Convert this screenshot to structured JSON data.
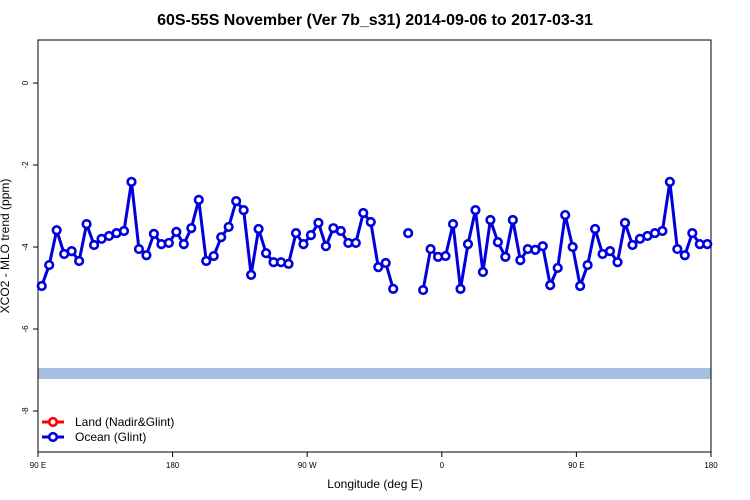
{
  "chart_data": {
    "type": "line",
    "title": "60S-55S November (Ver 7b_s31)   2014-09-06 to 2017-03-31",
    "xlabel": "Longitude (deg E)",
    "ylabel": "XCO2 - MLO trend (ppm)",
    "xlim": [
      90,
      540
    ],
    "xticks": [
      {
        "value": 90,
        "label": "90 E"
      },
      {
        "value": 180,
        "label": "180"
      },
      {
        "value": 270,
        "label": "90 W"
      },
      {
        "value": 360,
        "label": "0"
      },
      {
        "value": 450,
        "label": "90 E"
      },
      {
        "value": 540,
        "label": "180"
      }
    ],
    "ylim": [
      -9,
      1.05
    ],
    "yticks": [
      0,
      -2,
      -4,
      -6,
      -8
    ],
    "band": {
      "ymin": -7.22,
      "ymax": -6.95,
      "color": "#a6bee0"
    },
    "legend": "bottom-left",
    "x": [
      92.5,
      97.5,
      102.5,
      107.5,
      112.5,
      117.5,
      122.5,
      127.5,
      132.5,
      137.5,
      142.5,
      147.5,
      152.5,
      157.5,
      162.5,
      167.5,
      172.5,
      177.5,
      182.5,
      187.5,
      192.5,
      197.5,
      202.5,
      207.5,
      212.5,
      217.5,
      222.5,
      227.5,
      232.5,
      237.5,
      242.5,
      247.5,
      252.5,
      257.5,
      262.5,
      267.5,
      272.5,
      277.5,
      282.5,
      287.5,
      292.5,
      297.5,
      302.5,
      307.5,
      312.5,
      317.5,
      322.5,
      327.5,
      332.5,
      337.5,
      342.5,
      347.5,
      352.5,
      357.5,
      362.5,
      367.5,
      372.5,
      377.5,
      382.5,
      387.5,
      392.5,
      397.5,
      402.5,
      407.5,
      412.5,
      417.5,
      422.5,
      427.5,
      432.5,
      437.5,
      442.5,
      447.5,
      452.5,
      457.5,
      462.5,
      467.5,
      472.5,
      477.5,
      482.5,
      487.5,
      492.5,
      497.5,
      502.5,
      507.5,
      512.5,
      517.5,
      522.5,
      527.5,
      532.5,
      537.5
    ],
    "series": [
      {
        "name": "Land (Nadir&Glint)",
        "color": "#ff0000",
        "values": [
          null,
          null,
          null,
          null,
          null,
          null,
          null,
          null,
          null,
          null,
          null,
          null,
          null,
          null,
          null,
          null,
          null,
          null,
          null,
          null,
          null,
          null,
          null,
          null,
          null,
          null,
          null,
          null,
          null,
          null,
          null,
          null,
          null,
          null,
          null,
          null,
          null,
          null,
          null,
          null,
          null,
          null,
          null,
          null,
          null,
          null,
          null,
          null,
          null,
          null,
          null,
          null,
          null,
          null,
          null,
          null,
          null,
          null,
          null,
          null,
          null,
          null,
          null,
          null,
          null,
          null,
          null,
          null,
          null,
          null,
          null,
          null,
          null,
          null,
          null,
          null,
          null,
          null,
          null,
          null,
          null,
          null,
          null,
          null,
          null,
          null,
          null,
          null,
          null,
          null
        ]
      },
      {
        "name": "Ocean (Glint)",
        "color": "#0000dd",
        "values": [
          -4.95,
          -4.44,
          -3.59,
          -4.17,
          -4.1,
          -4.34,
          -3.44,
          -3.95,
          -3.8,
          -3.73,
          -3.66,
          -3.61,
          -2.41,
          -4.05,
          -4.2,
          -3.68,
          -3.93,
          -3.9,
          -3.63,
          -3.93,
          -3.54,
          -2.85,
          -4.34,
          -4.22,
          -3.76,
          -3.51,
          -2.88,
          -3.1,
          -4.68,
          -3.56,
          -4.15,
          -4.37,
          -4.37,
          -4.41,
          -3.66,
          -3.93,
          -3.71,
          -3.41,
          -3.98,
          -3.54,
          -3.61,
          -3.9,
          -3.9,
          -3.17,
          -3.39,
          -4.49,
          -4.39,
          -5.02,
          null,
          -3.66,
          null,
          -5.05,
          -4.05,
          -4.24,
          -4.22,
          -3.44,
          -5.02,
          -3.93,
          -3.1,
          -4.61,
          -3.34,
          -3.88,
          -4.24,
          -3.34,
          -4.32,
          -4.05,
          -4.07,
          -3.98,
          -4.93,
          -4.51,
          -3.22,
          -4.0,
          -4.95,
          -4.44,
          -3.56,
          -4.17,
          -4.1,
          -4.37,
          -3.41,
          -3.95,
          -3.8,
          -3.73,
          -3.66,
          -3.61,
          -2.41,
          -4.05,
          -4.2,
          -3.66,
          -3.93,
          -3.93
        ]
      }
    ]
  }
}
